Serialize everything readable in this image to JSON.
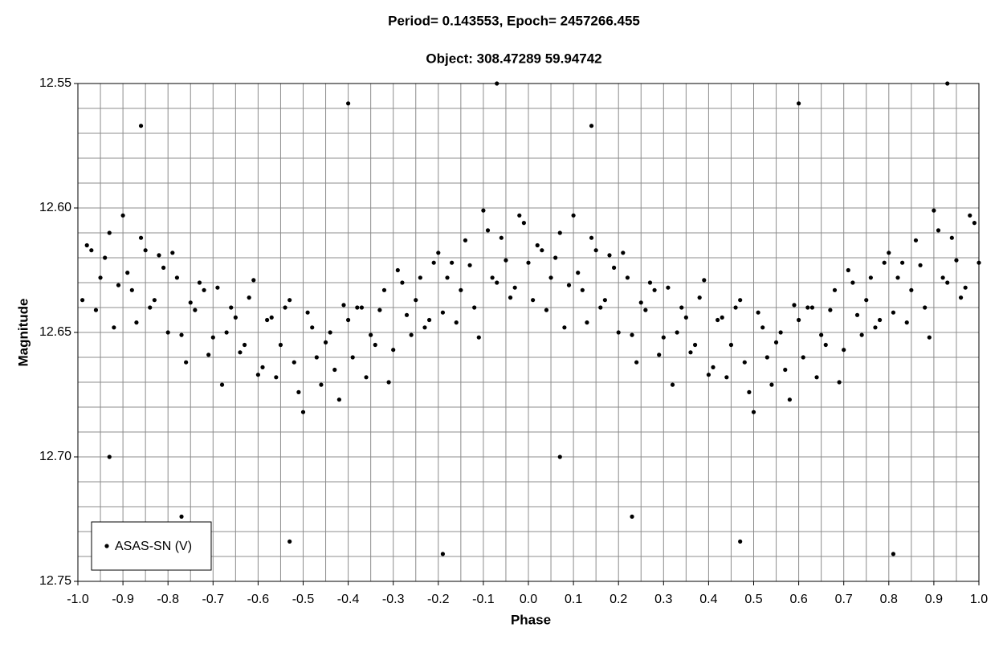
{
  "chart_data": {
    "type": "scatter",
    "title": "Period= 0.143553, Epoch= 2457266.455",
    "subtitle": "Object: 308.47289 59.94742",
    "x_label": "Phase",
    "y_label": "Magnitude",
    "xlim": [
      -1,
      1
    ],
    "xticks": [
      {
        "value": -1,
        "label": "-1.0"
      },
      -0.9,
      -0.8,
      -0.7,
      -0.6,
      -0.5,
      -0.4,
      -0.3,
      -0.2,
      -0.1,
      {
        "value": 0,
        "label": "0.0"
      },
      0.1,
      0.2,
      0.3,
      0.4,
      0.5,
      0.6,
      0.7,
      0.8,
      0.9,
      {
        "value": 1,
        "label": "1.0"
      }
    ],
    "xminor": [
      -0.95,
      -0.85,
      -0.75,
      -0.65,
      -0.55,
      -0.45,
      -0.35,
      -0.25,
      -0.15,
      -0.05,
      0.05,
      0.15,
      0.25,
      0.35,
      0.45,
      0.55,
      0.65,
      0.75,
      0.85,
      0.95
    ],
    "ylim": [
      12.55,
      12.75
    ],
    "y_reversed": true,
    "yticks": [
      12.55,
      {
        "value": 12.6,
        "label": "12.60"
      },
      12.65,
      {
        "value": 12.7,
        "label": "12.70"
      },
      12.75
    ],
    "yminor": [
      12.56,
      12.57,
      12.58,
      12.59,
      12.61,
      12.62,
      12.63,
      12.64,
      12.66,
      12.67,
      12.68,
      12.69,
      12.71,
      12.72,
      12.73,
      12.74
    ],
    "grid": true,
    "legend": "lower left",
    "series": [
      {
        "name": "ASAS-SN (V)",
        "color": "#000000",
        "x": [
          -0.99,
          -0.97,
          -0.95,
          -0.93,
          -0.91,
          -0.89,
          -0.87,
          -0.85,
          -0.83,
          -0.81,
          -0.79,
          -0.77,
          -0.75,
          -0.73,
          -0.71,
          -0.69,
          -0.67,
          -0.65,
          -0.63,
          -0.61,
          -0.59,
          -0.57,
          -0.55,
          -0.53,
          -0.51,
          -0.49,
          -0.47,
          -0.45,
          -0.43,
          -0.41,
          -0.39,
          -0.37,
          -0.35,
          -0.33,
          -0.31,
          -0.29,
          -0.27,
          -0.25,
          -0.23,
          -0.21,
          -0.19,
          -0.17,
          -0.15,
          -0.13,
          -0.11,
          -0.09,
          -0.07,
          -0.05,
          -0.03,
          -0.01,
          -0.98,
          -0.96,
          -0.94,
          -0.92,
          -0.9,
          -0.88,
          -0.86,
          -0.84,
          -0.82,
          -0.8,
          -0.78,
          -0.76,
          -0.74,
          -0.72,
          -0.7,
          -0.68,
          -0.66,
          -0.64,
          -0.62,
          -0.6,
          -0.58,
          -0.56,
          -0.54,
          -0.52,
          -0.5,
          -0.48,
          -0.46,
          -0.44,
          -0.42,
          -0.4,
          -0.38,
          -0.36,
          -0.34,
          -0.32,
          -0.3,
          -0.28,
          -0.26,
          -0.24,
          -0.22,
          -0.2,
          -0.18,
          -0.16,
          -0.14,
          -0.12,
          -0.1,
          -0.08,
          -0.06,
          -0.04,
          -0.02,
          0,
          0.01,
          0.03,
          0.05,
          0.07,
          0.09,
          0.11,
          0.13,
          0.15,
          0.17,
          0.19,
          0.21,
          0.23,
          0.25,
          0.27,
          0.29,
          0.31,
          0.33,
          0.35,
          0.37,
          0.39,
          0.41,
          0.43,
          0.45,
          0.47,
          0.49,
          0.51,
          0.53,
          0.55,
          0.57,
          0.59,
          0.61,
          0.63,
          0.65,
          0.67,
          0.69,
          0.71,
          0.73,
          0.75,
          0.77,
          0.79,
          0.81,
          0.83,
          0.85,
          0.87,
          0.89,
          0.91,
          0.93,
          0.95,
          0.97,
          0.99,
          0.02,
          0.04,
          0.06,
          0.08,
          0.1,
          0.12,
          0.14,
          0.16,
          0.18,
          0.2,
          0.22,
          0.24,
          0.26,
          0.28,
          0.3,
          0.32,
          0.34,
          0.36,
          0.38,
          0.4,
          0.42,
          0.44,
          0.46,
          0.48,
          0.5,
          0.52,
          0.54,
          0.56,
          0.58,
          0.6,
          0.62,
          0.64,
          0.66,
          0.68,
          0.7,
          0.72,
          0.74,
          0.76,
          0.78,
          0.8,
          0.82,
          0.84,
          0.86,
          0.88,
          0.9,
          0.92,
          0.94,
          0.96,
          0.98,
          1,
          -0.93,
          0.07,
          -0.77,
          0.23,
          -0.19,
          0.81,
          -0.4,
          0.6,
          -0.07,
          0.93,
          -0.53,
          0.47,
          -0.86,
          0.14
        ],
        "values": [
          12.637,
          12.617,
          12.628,
          12.61,
          12.631,
          12.626,
          12.646,
          12.617,
          12.637,
          12.624,
          12.618,
          12.651,
          12.638,
          12.63,
          12.659,
          12.632,
          12.65,
          12.644,
          12.655,
          12.629,
          12.664,
          12.644,
          12.655,
          12.637,
          12.674,
          12.642,
          12.66,
          12.654,
          12.665,
          12.639,
          12.66,
          12.64,
          12.651,
          12.641,
          12.67,
          12.625,
          12.643,
          12.637,
          12.648,
          12.622,
          12.642,
          12.622,
          12.633,
          12.623,
          12.652,
          12.609,
          12.63,
          12.621,
          12.632,
          12.606,
          12.615,
          12.641,
          12.62,
          12.648,
          12.603,
          12.633,
          12.612,
          12.64,
          12.619,
          12.65,
          12.628,
          12.662,
          12.641,
          12.633,
          12.652,
          12.671,
          12.64,
          12.658,
          12.636,
          12.667,
          12.645,
          12.668,
          12.64,
          12.662,
          12.682,
          12.648,
          12.671,
          12.65,
          12.677,
          12.645,
          12.64,
          12.668,
          12.655,
          12.633,
          12.657,
          12.63,
          12.651,
          12.628,
          12.645,
          12.618,
          12.628,
          12.646,
          12.613,
          12.64,
          12.601,
          12.628,
          12.612,
          12.636,
          12.603,
          12.622,
          12.637,
          12.617,
          12.628,
          12.61,
          12.631,
          12.626,
          12.646,
          12.617,
          12.637,
          12.624,
          12.618,
          12.651,
          12.638,
          12.63,
          12.659,
          12.632,
          12.65,
          12.644,
          12.655,
          12.629,
          12.664,
          12.644,
          12.655,
          12.637,
          12.674,
          12.642,
          12.66,
          12.654,
          12.665,
          12.639,
          12.66,
          12.64,
          12.651,
          12.641,
          12.67,
          12.625,
          12.643,
          12.637,
          12.648,
          12.622,
          12.642,
          12.622,
          12.633,
          12.623,
          12.652,
          12.609,
          12.63,
          12.621,
          12.632,
          12.606,
          12.615,
          12.641,
          12.62,
          12.648,
          12.603,
          12.633,
          12.612,
          12.64,
          12.619,
          12.65,
          12.628,
          12.662,
          12.641,
          12.633,
          12.652,
          12.671,
          12.64,
          12.658,
          12.636,
          12.667,
          12.645,
          12.668,
          12.64,
          12.662,
          12.682,
          12.648,
          12.671,
          12.65,
          12.677,
          12.645,
          12.64,
          12.668,
          12.655,
          12.633,
          12.657,
          12.63,
          12.651,
          12.628,
          12.645,
          12.618,
          12.628,
          12.646,
          12.613,
          12.64,
          12.601,
          12.628,
          12.612,
          12.636,
          12.603,
          12.622,
          12.7,
          12.7,
          12.724,
          12.724,
          12.739,
          12.739,
          12.558,
          12.558,
          12.55,
          12.55,
          12.734,
          12.734,
          12.567,
          12.567
        ]
      }
    ]
  }
}
